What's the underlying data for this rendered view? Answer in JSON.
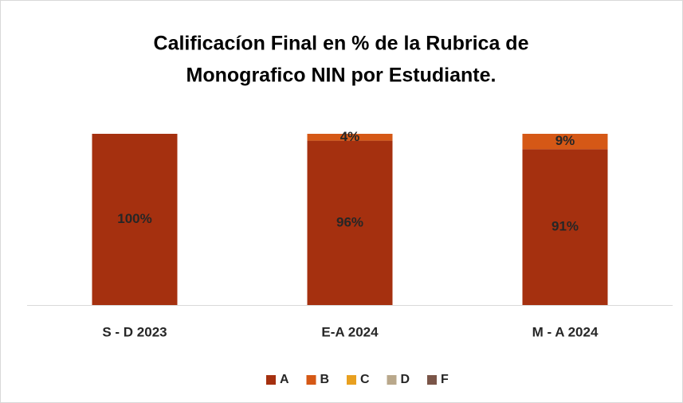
{
  "chart_data": {
    "type": "stacked_bar",
    "title": [
      "Calificacíon Final en % de la Rubrica de",
      "Monografico NIN por Estudiante."
    ],
    "categories": [
      "S - D 2023",
      "E-A 2024",
      "M - A 2024"
    ],
    "series": [
      {
        "name": "A",
        "color": "#a5300f",
        "values": [
          100,
          96,
          91
        ],
        "value_labels": [
          "100%",
          "96%",
          "91%"
        ]
      },
      {
        "name": "B",
        "color": "#d55816",
        "values": [
          0,
          4,
          9
        ],
        "value_labels": [
          null,
          "4%",
          "9%"
        ]
      },
      {
        "name": "C",
        "color": "#e8a020",
        "values": [
          0,
          0,
          0
        ],
        "value_labels": [
          null,
          null,
          null
        ]
      },
      {
        "name": "D",
        "color": "#b9a88b",
        "values": [
          0,
          0,
          0
        ],
        "value_labels": [
          null,
          null,
          null
        ]
      },
      {
        "name": "F",
        "color": "#7a5548",
        "values": [
          0,
          0,
          0
        ],
        "value_labels": [
          null,
          null,
          null
        ]
      }
    ],
    "ylim": [
      0,
      100
    ],
    "legend": "bottom"
  }
}
